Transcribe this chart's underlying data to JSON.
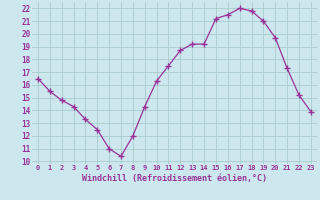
{
  "x": [
    0,
    1,
    2,
    3,
    4,
    5,
    6,
    7,
    8,
    9,
    10,
    11,
    12,
    13,
    14,
    15,
    16,
    17,
    18,
    19,
    20,
    21,
    22,
    23
  ],
  "y": [
    16.5,
    15.5,
    14.8,
    14.3,
    13.3,
    12.5,
    11.0,
    10.4,
    12.0,
    14.3,
    16.3,
    17.5,
    18.7,
    19.2,
    19.2,
    21.2,
    21.5,
    22.0,
    21.8,
    21.0,
    19.7,
    17.3,
    15.2,
    13.9
  ],
  "line_color": "#993399",
  "marker": "P",
  "marker_size": 3,
  "background_color": "#cce8ee",
  "grid_color": "#aacccc",
  "xlabel": "Windchill (Refroidissement éolien,°C)",
  "xlabel_color": "#993399",
  "tick_color": "#993399",
  "label_color": "#993399",
  "ylim": [
    9.8,
    22.5
  ],
  "xlim": [
    -0.5,
    23.5
  ],
  "yticks": [
    10,
    11,
    12,
    13,
    14,
    15,
    16,
    17,
    18,
    19,
    20,
    21,
    22
  ],
  "xticks": [
    0,
    1,
    2,
    3,
    4,
    5,
    6,
    7,
    8,
    9,
    10,
    11,
    12,
    13,
    14,
    15,
    16,
    17,
    18,
    19,
    20,
    21,
    22,
    23
  ]
}
